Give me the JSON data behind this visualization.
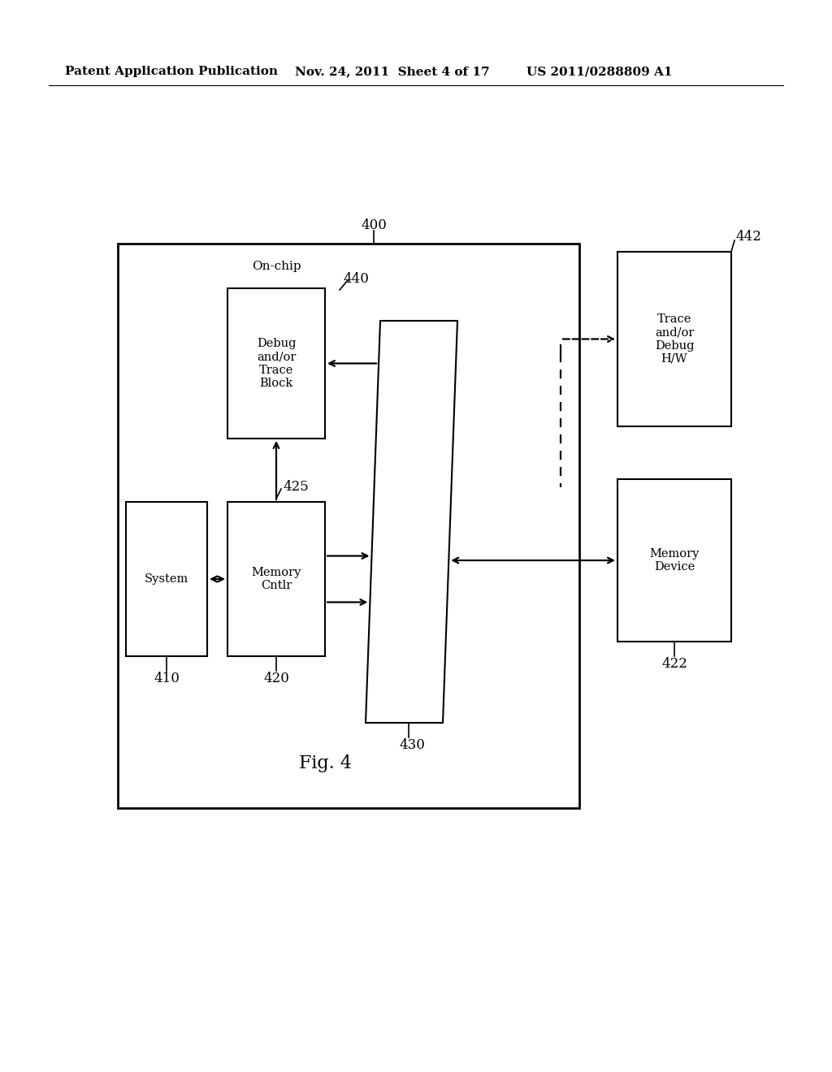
{
  "bg_color": "#ffffff",
  "header_left": "Patent Application Publication",
  "header_mid": "Nov. 24, 2011  Sheet 4 of 17",
  "header_right": "US 2011/0288809 A1",
  "fig_label": "Fig. 4",
  "label_400": "400",
  "label_442": "442",
  "label_440": "440",
  "label_425": "425",
  "label_430": "430",
  "label_410": "410",
  "label_420": "420",
  "label_422": "422",
  "text_onchip": "On-chip",
  "text_system": "System",
  "text_memory_cntlr": "Memory\nCntlr",
  "text_debug_trace": "Debug\nand/or\nTrace\nBlock",
  "text_trace_debug_hw": "Trace\nand/or\nDebug\nH/W",
  "text_memory_device": "Memory\nDevice"
}
